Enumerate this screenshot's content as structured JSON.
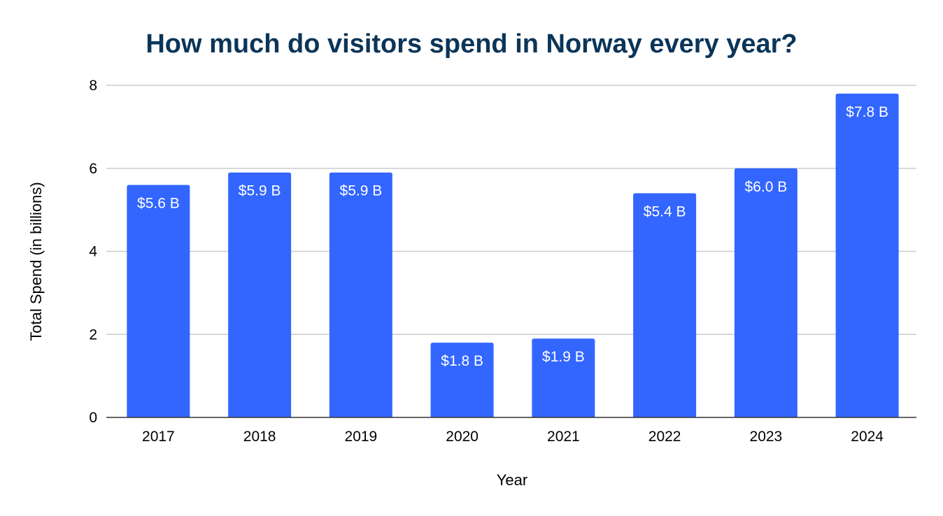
{
  "chart_data": {
    "type": "bar",
    "title": "How much do visitors spend in Norway every year?",
    "xlabel": "Year",
    "ylabel": "Total Spend (in billions)",
    "categories": [
      "2017",
      "2018",
      "2019",
      "2020",
      "2021",
      "2022",
      "2023",
      "2024"
    ],
    "values": [
      5.6,
      5.9,
      5.9,
      1.8,
      1.9,
      5.4,
      6.0,
      7.8
    ],
    "data_labels": [
      "$5.6 B",
      "$5.9 B",
      "$5.9 B",
      "$1.8 B",
      "$1.9 B",
      "$5.4 B",
      "$6.0 B",
      "$7.8 B"
    ],
    "yticks": [
      "0",
      "2",
      "4",
      "6",
      "8"
    ],
    "ylim": [
      0,
      8
    ],
    "grid": true,
    "legend": "none",
    "colors": {
      "bar": "#3366ff",
      "title": "#0b3558",
      "grid": "#cccccc",
      "axis": "#333333"
    }
  }
}
